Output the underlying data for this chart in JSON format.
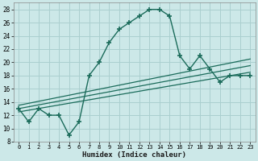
{
  "xlabel": "Humidex (Indice chaleur)",
  "background_color": "#cce8e8",
  "grid_color": "#aacfcf",
  "line_color": "#1a6b5a",
  "xlim": [
    -0.5,
    23.5
  ],
  "ylim": [
    8,
    29
  ],
  "yticks": [
    8,
    10,
    12,
    14,
    16,
    18,
    20,
    22,
    24,
    26,
    28
  ],
  "xticks": [
    0,
    1,
    2,
    3,
    4,
    5,
    6,
    7,
    8,
    9,
    10,
    11,
    12,
    13,
    14,
    15,
    16,
    17,
    18,
    19,
    20,
    21,
    22,
    23
  ],
  "main_line_x": [
    0,
    1,
    2,
    3,
    4,
    5,
    6,
    7,
    8,
    9,
    10,
    11,
    12,
    13,
    14,
    15,
    16,
    17,
    18,
    19,
    20,
    21,
    22,
    23
  ],
  "main_line_y": [
    13,
    11,
    13,
    12,
    12,
    9,
    11,
    18,
    20,
    23,
    25,
    26,
    27,
    28,
    28,
    27,
    21,
    19,
    21,
    19,
    17,
    18,
    18,
    18
  ],
  "line2_x": [
    0,
    23
  ],
  "line2_y": [
    13.5,
    20.5
  ],
  "line3_x": [
    0,
    23
  ],
  "line3_y": [
    13.0,
    19.5
  ],
  "line4_x": [
    0,
    23
  ],
  "line4_y": [
    12.5,
    18.5
  ]
}
